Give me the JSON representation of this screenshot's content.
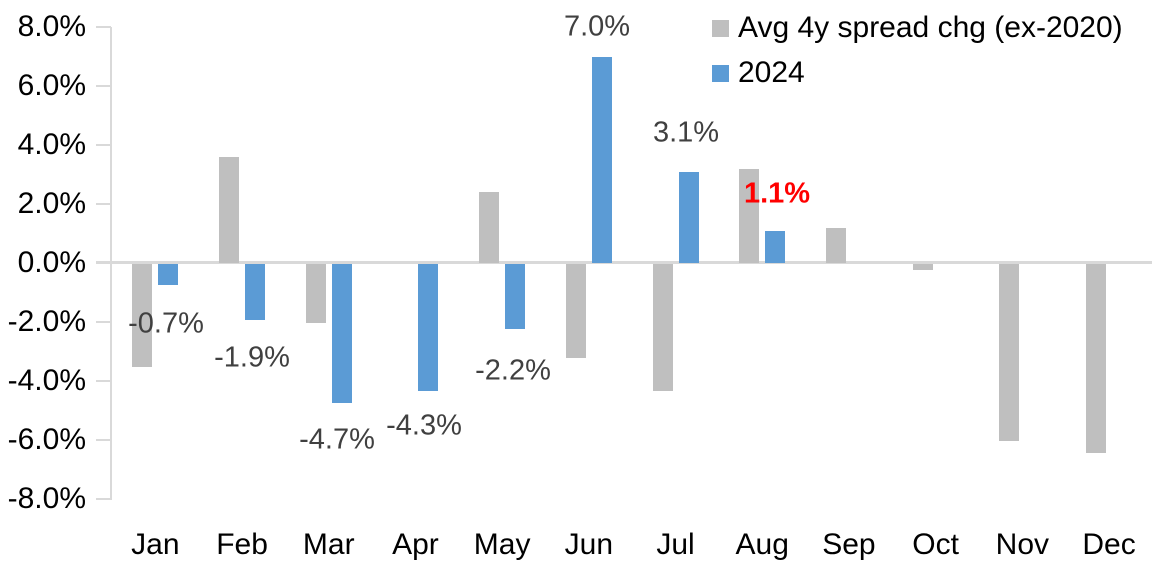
{
  "chart_data": {
    "type": "bar",
    "title": "",
    "xlabel": "",
    "ylabel": "",
    "categories": [
      "Jan",
      "Feb",
      "Mar",
      "Apr",
      "May",
      "Jun",
      "Jul",
      "Aug",
      "Sep",
      "Oct",
      "Nov",
      "Dec"
    ],
    "series": [
      {
        "name": "Avg 4y spread chg (ex-2020)",
        "color": "#BFBFBF",
        "values": [
          -3.5,
          3.6,
          -2.0,
          0.0,
          2.4,
          -3.2,
          -4.3,
          3.2,
          1.2,
          -0.2,
          -6.0,
          -6.4
        ]
      },
      {
        "name": "2024",
        "color": "#5B9BD5",
        "values": [
          -0.7,
          -1.9,
          -4.7,
          -4.3,
          -2.2,
          7.0,
          3.1,
          1.1,
          null,
          null,
          null,
          null
        ]
      }
    ],
    "data_labels": [
      {
        "month": "Jan",
        "series": "2024",
        "text": "-0.7%",
        "color": "#404040",
        "bold": false
      },
      {
        "month": "Feb",
        "series": "2024",
        "text": "-1.9%",
        "color": "#404040",
        "bold": false
      },
      {
        "month": "Mar",
        "series": "2024",
        "text": "-4.7%",
        "color": "#404040",
        "bold": false
      },
      {
        "month": "Apr",
        "series": "2024",
        "text": "-4.3%",
        "color": "#404040",
        "bold": false
      },
      {
        "month": "May",
        "series": "2024",
        "text": "-2.2%",
        "color": "#404040",
        "bold": false
      },
      {
        "month": "Jun",
        "series": "2024",
        "text": "7.0%",
        "color": "#404040",
        "bold": false
      },
      {
        "month": "Jul",
        "series": "2024",
        "text": "3.1%",
        "color": "#404040",
        "bold": false
      },
      {
        "month": "Aug",
        "series": "2024",
        "text": "1.1%",
        "color": "#FF0000",
        "bold": true
      }
    ],
    "ytick_labels": [
      "8.0%",
      "6.0%",
      "4.0%",
      "2.0%",
      "0.0%",
      "-2.0%",
      "-4.0%",
      "-6.0%",
      "-8.0%"
    ],
    "ytick_values": [
      8,
      6,
      4,
      2,
      0,
      -2,
      -4,
      -6,
      -8
    ],
    "ylim": [
      -8,
      8
    ],
    "grid": false,
    "legend_position": "top-right",
    "axis_color": "#D9D9D9",
    "text_color": "#000000",
    "label_color": "#404040",
    "highlight_color": "#FF0000"
  }
}
